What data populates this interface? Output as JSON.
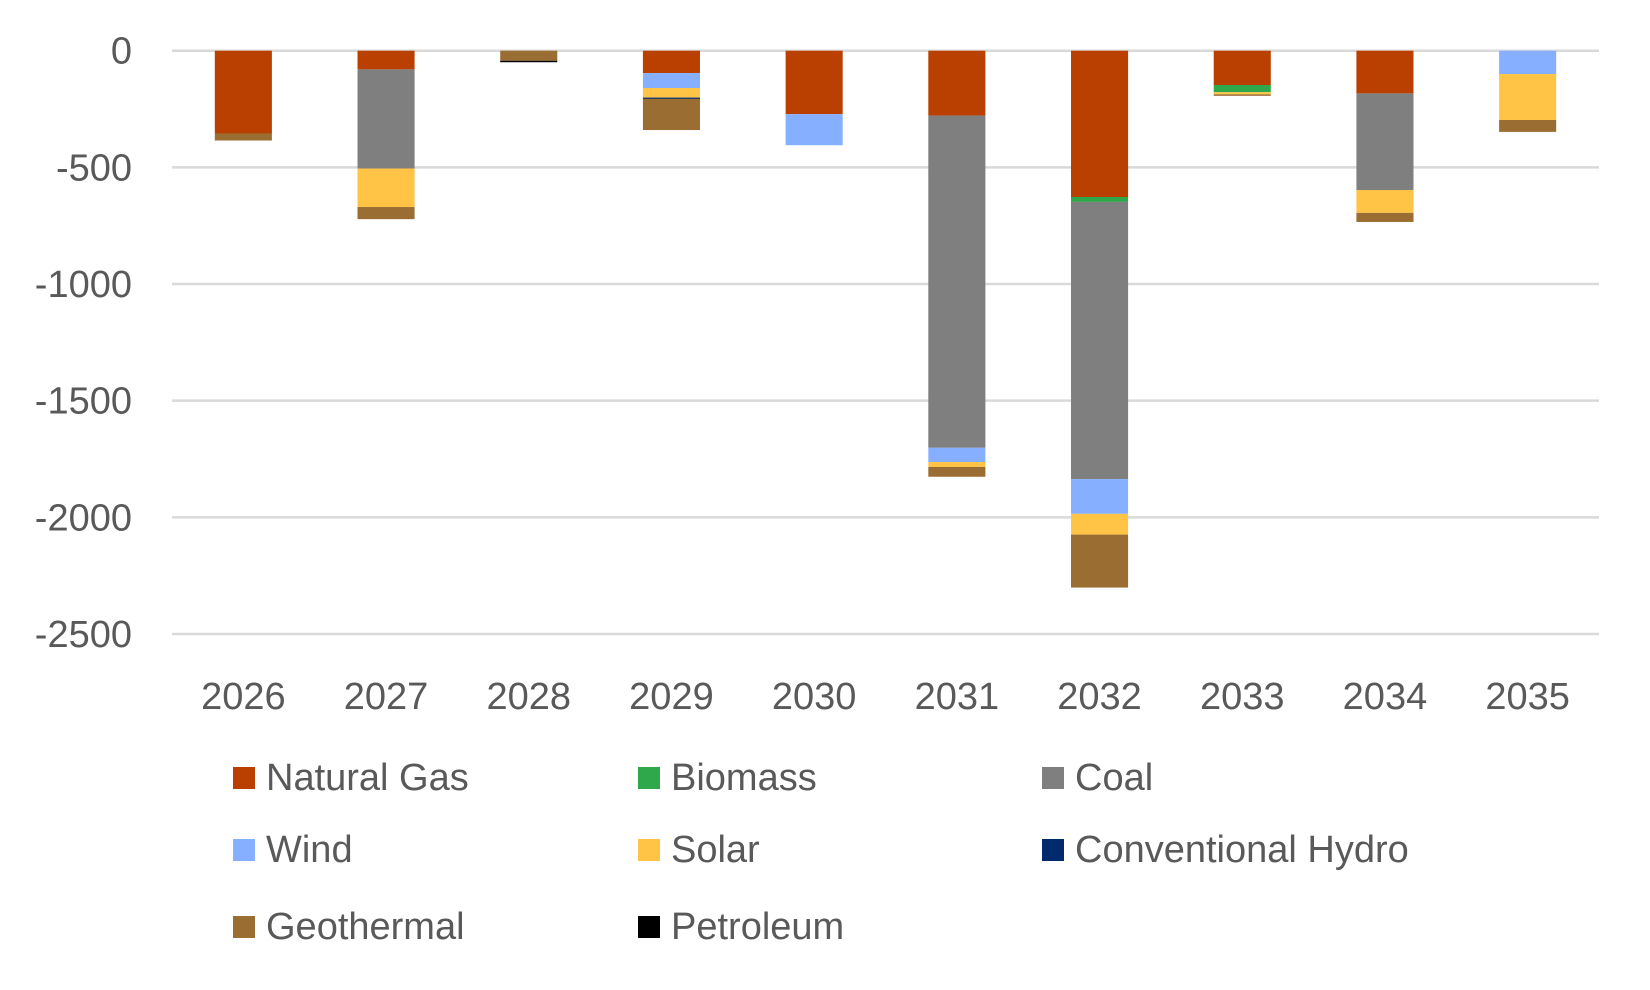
{
  "chart_data": {
    "type": "bar",
    "stacked": true,
    "title": "",
    "xlabel": "",
    "ylabel": "",
    "ylim": [
      -2500,
      0
    ],
    "yticks": [
      0,
      -500,
      -1000,
      -1500,
      -2000,
      -2500
    ],
    "grid": true,
    "legend_position": "bottom",
    "categories": [
      "2026",
      "2027",
      "2028",
      "2029",
      "2030",
      "2031",
      "2032",
      "2033",
      "2034",
      "2035"
    ],
    "series": [
      {
        "name": "Natural Gas",
        "color": "#B94000",
        "values": [
          -355,
          -80,
          0,
          -96,
          -272,
          -278,
          -627,
          -147,
          -183,
          0
        ]
      },
      {
        "name": "Biomass",
        "color": "#2EA84A",
        "values": [
          0,
          0,
          0,
          0,
          0,
          0,
          -21,
          -31,
          0,
          0
        ]
      },
      {
        "name": "Coal",
        "color": "#7F7F7F",
        "values": [
          0,
          -425,
          0,
          0,
          0,
          -1424,
          -1188,
          0,
          -414,
          0
        ]
      },
      {
        "name": "Wind",
        "color": "#86B0FF",
        "values": [
          0,
          0,
          0,
          -64,
          -133,
          -61,
          -149,
          0,
          0,
          -100
        ]
      },
      {
        "name": "Solar",
        "color": "#FFC445",
        "values": [
          0,
          -165,
          0,
          -41,
          0,
          -21,
          -89,
          -9,
          -98,
          -197
        ]
      },
      {
        "name": "Conventional Hydro",
        "color": "#002A6E",
        "values": [
          0,
          0,
          0,
          -5,
          0,
          0,
          0,
          0,
          0,
          0
        ]
      },
      {
        "name": "Geothermal",
        "color": "#9A6D32",
        "values": [
          -30,
          -52,
          -43,
          -134,
          0,
          -42,
          -227,
          -4,
          -39,
          -51
        ]
      },
      {
        "name": "Petroleum",
        "color": "#000000",
        "values": [
          0,
          0,
          -5,
          0,
          0,
          0,
          0,
          0,
          0,
          0
        ]
      }
    ],
    "legend": [
      {
        "name": "Natural Gas",
        "color": "#B94000"
      },
      {
        "name": "Biomass",
        "color": "#2EA84A"
      },
      {
        "name": "Coal",
        "color": "#7F7F7F"
      },
      {
        "name": "Wind",
        "color": "#86B0FF"
      },
      {
        "name": "Solar",
        "color": "#FFC445"
      },
      {
        "name": "Conventional Hydro",
        "color": "#002A6E"
      },
      {
        "name": "Geothermal",
        "color": "#9A6D32"
      },
      {
        "name": "Petroleum",
        "color": "#000000"
      }
    ]
  },
  "colors": {
    "gridline": "#D9D9D9",
    "text": "#595959"
  }
}
